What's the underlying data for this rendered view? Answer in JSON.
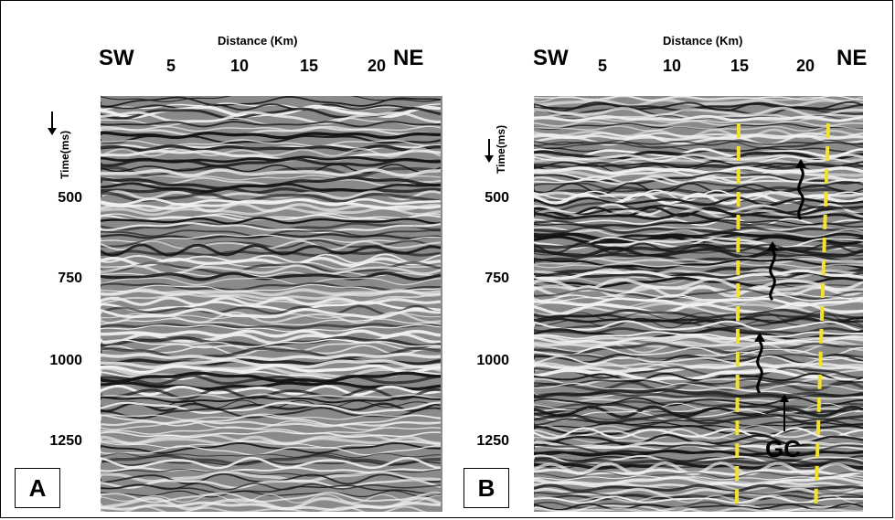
{
  "panels": [
    {
      "id": "A",
      "tag": "A",
      "left_direction": "SW",
      "right_direction": "NE",
      "x_axis_title": "Distance (Km)",
      "x_ticks": [
        "5",
        "10",
        "15",
        "20"
      ],
      "y_axis_title": "Time(ms)",
      "y_ticks": [
        "500",
        "750",
        "1000",
        "1250"
      ]
    },
    {
      "id": "B",
      "tag": "B",
      "left_direction": "SW",
      "right_direction": "NE",
      "x_axis_title": "Distance (Km)",
      "x_ticks": [
        "5",
        "10",
        "15",
        "20"
      ],
      "y_axis_title": "Time(ms)",
      "y_ticks": [
        "500",
        "750",
        "1000",
        "1250"
      ],
      "annotation": "GC"
    }
  ],
  "colors": {
    "boundary_dash": "#f2e22a",
    "seismic_dark": "#111111",
    "seismic_light": "#f5f5f5"
  },
  "icons": [
    "down-arrow-icon",
    "wavy-up-arrow-icon",
    "up-arrow-icon"
  ]
}
